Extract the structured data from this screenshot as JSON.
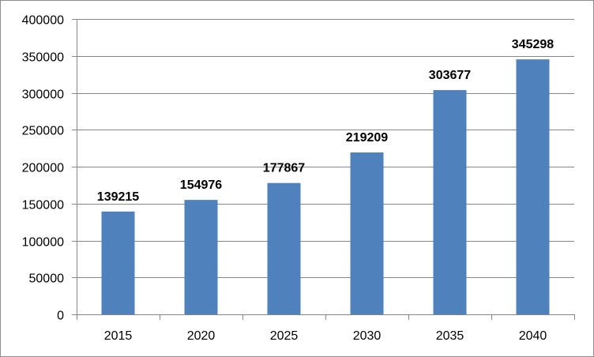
{
  "chart_data": {
    "type": "bar",
    "categories": [
      "2015",
      "2020",
      "2025",
      "2030",
      "2035",
      "2040"
    ],
    "values": [
      139215,
      154976,
      177867,
      219209,
      303677,
      345298
    ],
    "data_labels": [
      "139215",
      "154976",
      "177867",
      "219209",
      "303677",
      "345298"
    ],
    "y_ticks": [
      "0",
      "50000",
      "100000",
      "150000",
      "200000",
      "250000",
      "300000",
      "350000",
      "400000"
    ],
    "title": "",
    "xlabel": "",
    "ylabel": "",
    "ylim": [
      0,
      400000
    ],
    "y_step": 50000,
    "grid": true,
    "legend": "none",
    "bar_color": "#4f81bd",
    "grid_color": "#868686"
  }
}
